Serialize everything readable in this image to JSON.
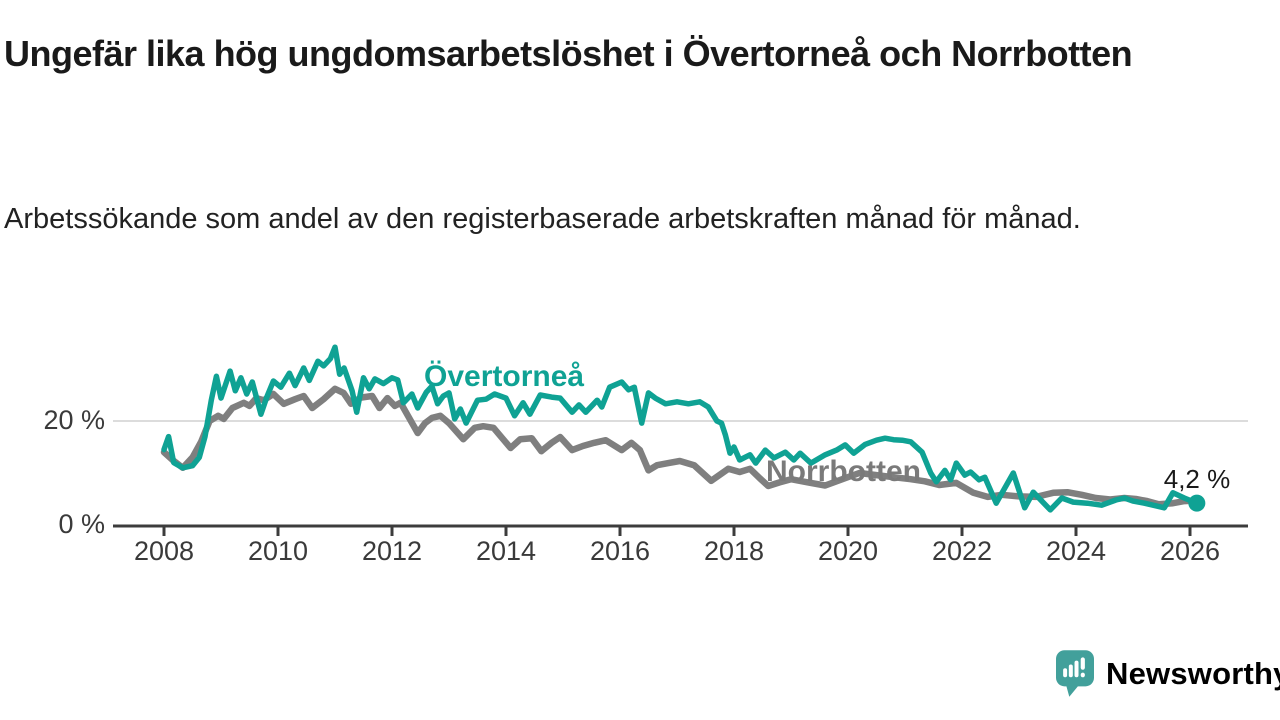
{
  "header": {
    "title": "Ungefär lika hög ungdomsarbetslöshet i Övertorneå och Norrbotten",
    "subtitle": "Arbetssökande som andel av den registerbaserade arbetskraften månad för månad."
  },
  "chart_data": {
    "type": "line",
    "title": "Ungefär lika hög ungdomsarbetslöshet i Övertorneå och Norrbotten",
    "xlabel": "",
    "ylabel": "Arbetssökande som andel av den registerbaserade arbetskraften",
    "x_axis": {
      "ticks": [
        "2008",
        "2010",
        "2012",
        "2014",
        "2016",
        "2018",
        "2020",
        "2022",
        "2024",
        "2026"
      ],
      "start": 2008,
      "end": 2026.2
    },
    "y_axis": {
      "unit": "%",
      "ylim": [
        0,
        36
      ],
      "ticks": [
        {
          "value": 20,
          "label": "20 %"
        },
        {
          "value": 0,
          "label": "0 %"
        }
      ]
    },
    "grid_color": "#dcdcdc",
    "axis_color": "#3c3c3c",
    "legend_position": "inline-labels",
    "series": [
      {
        "name": "Övertorneå",
        "color": "#0fa294",
        "stroke_width": 5.5,
        "points": [
          [
            2008.0,
            14.5
          ],
          [
            2008.08,
            17.0
          ],
          [
            2008.17,
            12.0
          ],
          [
            2008.33,
            11.0
          ],
          [
            2008.5,
            11.4
          ],
          [
            2008.62,
            13.0
          ],
          [
            2008.72,
            17.0
          ],
          [
            2008.83,
            24.0
          ],
          [
            2008.92,
            28.6
          ],
          [
            2009.0,
            24.4
          ],
          [
            2009.16,
            29.6
          ],
          [
            2009.25,
            25.8
          ],
          [
            2009.35,
            28.3
          ],
          [
            2009.45,
            25.2
          ],
          [
            2009.55,
            27.5
          ],
          [
            2009.7,
            21.3
          ],
          [
            2009.8,
            24.5
          ],
          [
            2009.92,
            27.7
          ],
          [
            2010.05,
            26.5
          ],
          [
            2010.2,
            29.2
          ],
          [
            2010.3,
            26.8
          ],
          [
            2010.45,
            30.2
          ],
          [
            2010.55,
            27.8
          ],
          [
            2010.7,
            31.5
          ],
          [
            2010.8,
            30.6
          ],
          [
            2010.92,
            32.0
          ],
          [
            2011.0,
            34.2
          ],
          [
            2011.08,
            29.0
          ],
          [
            2011.16,
            30.2
          ],
          [
            2011.3,
            25.8
          ],
          [
            2011.38,
            21.7
          ],
          [
            2011.5,
            28.3
          ],
          [
            2011.6,
            26.2
          ],
          [
            2011.7,
            28.1
          ],
          [
            2011.85,
            27.2
          ],
          [
            2012.0,
            28.3
          ],
          [
            2012.1,
            27.9
          ],
          [
            2012.2,
            23.5
          ],
          [
            2012.35,
            25.2
          ],
          [
            2012.45,
            22.5
          ],
          [
            2012.6,
            25.5
          ],
          [
            2012.7,
            26.7
          ],
          [
            2012.8,
            23.3
          ],
          [
            2012.9,
            24.8
          ],
          [
            2013.0,
            25.4
          ],
          [
            2013.1,
            20.4
          ],
          [
            2013.2,
            22.3
          ],
          [
            2013.3,
            19.6
          ],
          [
            2013.5,
            24.0
          ],
          [
            2013.65,
            24.2
          ],
          [
            2013.8,
            25.2
          ],
          [
            2014.0,
            24.4
          ],
          [
            2014.15,
            21.0
          ],
          [
            2014.3,
            23.5
          ],
          [
            2014.42,
            21.3
          ],
          [
            2014.6,
            25.0
          ],
          [
            2014.8,
            24.6
          ],
          [
            2014.95,
            24.4
          ],
          [
            2015.16,
            21.7
          ],
          [
            2015.28,
            23.1
          ],
          [
            2015.4,
            21.7
          ],
          [
            2015.6,
            24.0
          ],
          [
            2015.68,
            22.7
          ],
          [
            2015.82,
            26.5
          ],
          [
            2016.03,
            27.5
          ],
          [
            2016.15,
            26.0
          ],
          [
            2016.25,
            26.5
          ],
          [
            2016.38,
            19.6
          ],
          [
            2016.5,
            25.4
          ],
          [
            2016.62,
            24.4
          ],
          [
            2016.8,
            23.3
          ],
          [
            2017.0,
            23.7
          ],
          [
            2017.2,
            23.3
          ],
          [
            2017.4,
            23.7
          ],
          [
            2017.55,
            22.7
          ],
          [
            2017.7,
            20.0
          ],
          [
            2017.78,
            19.6
          ],
          [
            2017.85,
            17.3
          ],
          [
            2017.93,
            13.8
          ],
          [
            2018.0,
            15.0
          ],
          [
            2018.1,
            12.5
          ],
          [
            2018.28,
            13.5
          ],
          [
            2018.38,
            11.9
          ],
          [
            2018.55,
            14.4
          ],
          [
            2018.7,
            12.9
          ],
          [
            2018.9,
            14.0
          ],
          [
            2019.05,
            12.5
          ],
          [
            2019.16,
            13.8
          ],
          [
            2019.35,
            11.9
          ],
          [
            2019.6,
            13.5
          ],
          [
            2019.8,
            14.4
          ],
          [
            2019.95,
            15.4
          ],
          [
            2020.1,
            13.8
          ],
          [
            2020.3,
            15.5
          ],
          [
            2020.5,
            16.3
          ],
          [
            2020.65,
            16.7
          ],
          [
            2020.8,
            16.4
          ],
          [
            2020.95,
            16.3
          ],
          [
            2021.1,
            16.0
          ],
          [
            2021.3,
            14.0
          ],
          [
            2021.45,
            10.0
          ],
          [
            2021.55,
            8.3
          ],
          [
            2021.7,
            10.5
          ],
          [
            2021.8,
            8.7
          ],
          [
            2021.9,
            11.9
          ],
          [
            2022.05,
            9.6
          ],
          [
            2022.15,
            10.2
          ],
          [
            2022.3,
            8.7
          ],
          [
            2022.4,
            9.2
          ],
          [
            2022.6,
            4.2
          ],
          [
            2022.9,
            10.0
          ],
          [
            2023.1,
            3.3
          ],
          [
            2023.25,
            6.3
          ],
          [
            2023.55,
            2.9
          ],
          [
            2023.75,
            5.2
          ],
          [
            2023.95,
            4.4
          ],
          [
            2024.2,
            4.2
          ],
          [
            2024.45,
            3.8
          ],
          [
            2024.7,
            4.8
          ],
          [
            2024.85,
            5.2
          ],
          [
            2025.0,
            4.6
          ],
          [
            2025.2,
            4.2
          ],
          [
            2025.4,
            3.7
          ],
          [
            2025.55,
            3.3
          ],
          [
            2025.7,
            6.2
          ],
          [
            2025.9,
            5.2
          ],
          [
            2026.12,
            4.2
          ]
        ]
      },
      {
        "name": "Norrbotten",
        "color": "#7f7f7f",
        "stroke_width": 6.5,
        "points": [
          [
            2008.0,
            14.0
          ],
          [
            2008.15,
            12.5
          ],
          [
            2008.33,
            11.0
          ],
          [
            2008.5,
            13.0
          ],
          [
            2008.65,
            16.0
          ],
          [
            2008.8,
            20.0
          ],
          [
            2008.95,
            21.0
          ],
          [
            2009.05,
            20.4
          ],
          [
            2009.2,
            22.5
          ],
          [
            2009.4,
            23.5
          ],
          [
            2009.5,
            22.9
          ],
          [
            2009.62,
            24.4
          ],
          [
            2009.75,
            24.0
          ],
          [
            2009.92,
            25.2
          ],
          [
            2010.1,
            23.3
          ],
          [
            2010.3,
            24.2
          ],
          [
            2010.45,
            24.8
          ],
          [
            2010.6,
            22.5
          ],
          [
            2010.8,
            24.2
          ],
          [
            2011.0,
            26.2
          ],
          [
            2011.15,
            25.4
          ],
          [
            2011.28,
            23.3
          ],
          [
            2011.45,
            24.5
          ],
          [
            2011.65,
            24.8
          ],
          [
            2011.78,
            22.5
          ],
          [
            2011.92,
            24.4
          ],
          [
            2012.05,
            22.9
          ],
          [
            2012.15,
            23.5
          ],
          [
            2012.45,
            17.7
          ],
          [
            2012.58,
            19.6
          ],
          [
            2012.7,
            20.6
          ],
          [
            2012.85,
            21.0
          ],
          [
            2013.0,
            19.6
          ],
          [
            2013.25,
            16.5
          ],
          [
            2013.45,
            18.7
          ],
          [
            2013.6,
            19.0
          ],
          [
            2013.78,
            18.7
          ],
          [
            2014.08,
            14.8
          ],
          [
            2014.25,
            16.5
          ],
          [
            2014.45,
            16.7
          ],
          [
            2014.62,
            14.2
          ],
          [
            2014.8,
            15.8
          ],
          [
            2014.95,
            16.9
          ],
          [
            2015.16,
            14.4
          ],
          [
            2015.35,
            15.2
          ],
          [
            2015.55,
            15.8
          ],
          [
            2015.75,
            16.3
          ],
          [
            2016.03,
            14.4
          ],
          [
            2016.2,
            15.8
          ],
          [
            2016.35,
            14.4
          ],
          [
            2016.5,
            10.5
          ],
          [
            2016.65,
            11.5
          ],
          [
            2016.85,
            11.9
          ],
          [
            2017.05,
            12.3
          ],
          [
            2017.3,
            11.5
          ],
          [
            2017.6,
            8.5
          ],
          [
            2017.9,
            10.8
          ],
          [
            2018.1,
            10.2
          ],
          [
            2018.28,
            10.8
          ],
          [
            2018.45,
            9.0
          ],
          [
            2018.6,
            7.5
          ],
          [
            2018.8,
            8.2
          ],
          [
            2019.0,
            8.8
          ],
          [
            2019.3,
            8.2
          ],
          [
            2019.6,
            7.6
          ],
          [
            2019.9,
            8.8
          ],
          [
            2020.2,
            10.0
          ],
          [
            2020.5,
            9.6
          ],
          [
            2020.8,
            9.2
          ],
          [
            2021.1,
            8.8
          ],
          [
            2021.35,
            8.4
          ],
          [
            2021.6,
            7.7
          ],
          [
            2021.9,
            8.1
          ],
          [
            2022.2,
            6.2
          ],
          [
            2022.45,
            5.4
          ],
          [
            2022.7,
            5.8
          ],
          [
            2023.0,
            5.5
          ],
          [
            2023.3,
            5.4
          ],
          [
            2023.6,
            6.2
          ],
          [
            2023.85,
            6.3
          ],
          [
            2024.1,
            5.8
          ],
          [
            2024.35,
            5.2
          ],
          [
            2024.6,
            4.9
          ],
          [
            2024.85,
            5.2
          ],
          [
            2025.05,
            5.0
          ],
          [
            2025.25,
            4.6
          ],
          [
            2025.45,
            4.0
          ],
          [
            2025.7,
            4.2
          ],
          [
            2025.9,
            4.6
          ],
          [
            2026.1,
            4.7
          ]
        ]
      }
    ],
    "end_marker": {
      "series": "Övertorneå",
      "x": 2026.12,
      "value": 4.2,
      "label": "4,2 %"
    }
  },
  "footer": {
    "brand": "Newsworthy",
    "brand_color": "#42a09b"
  }
}
